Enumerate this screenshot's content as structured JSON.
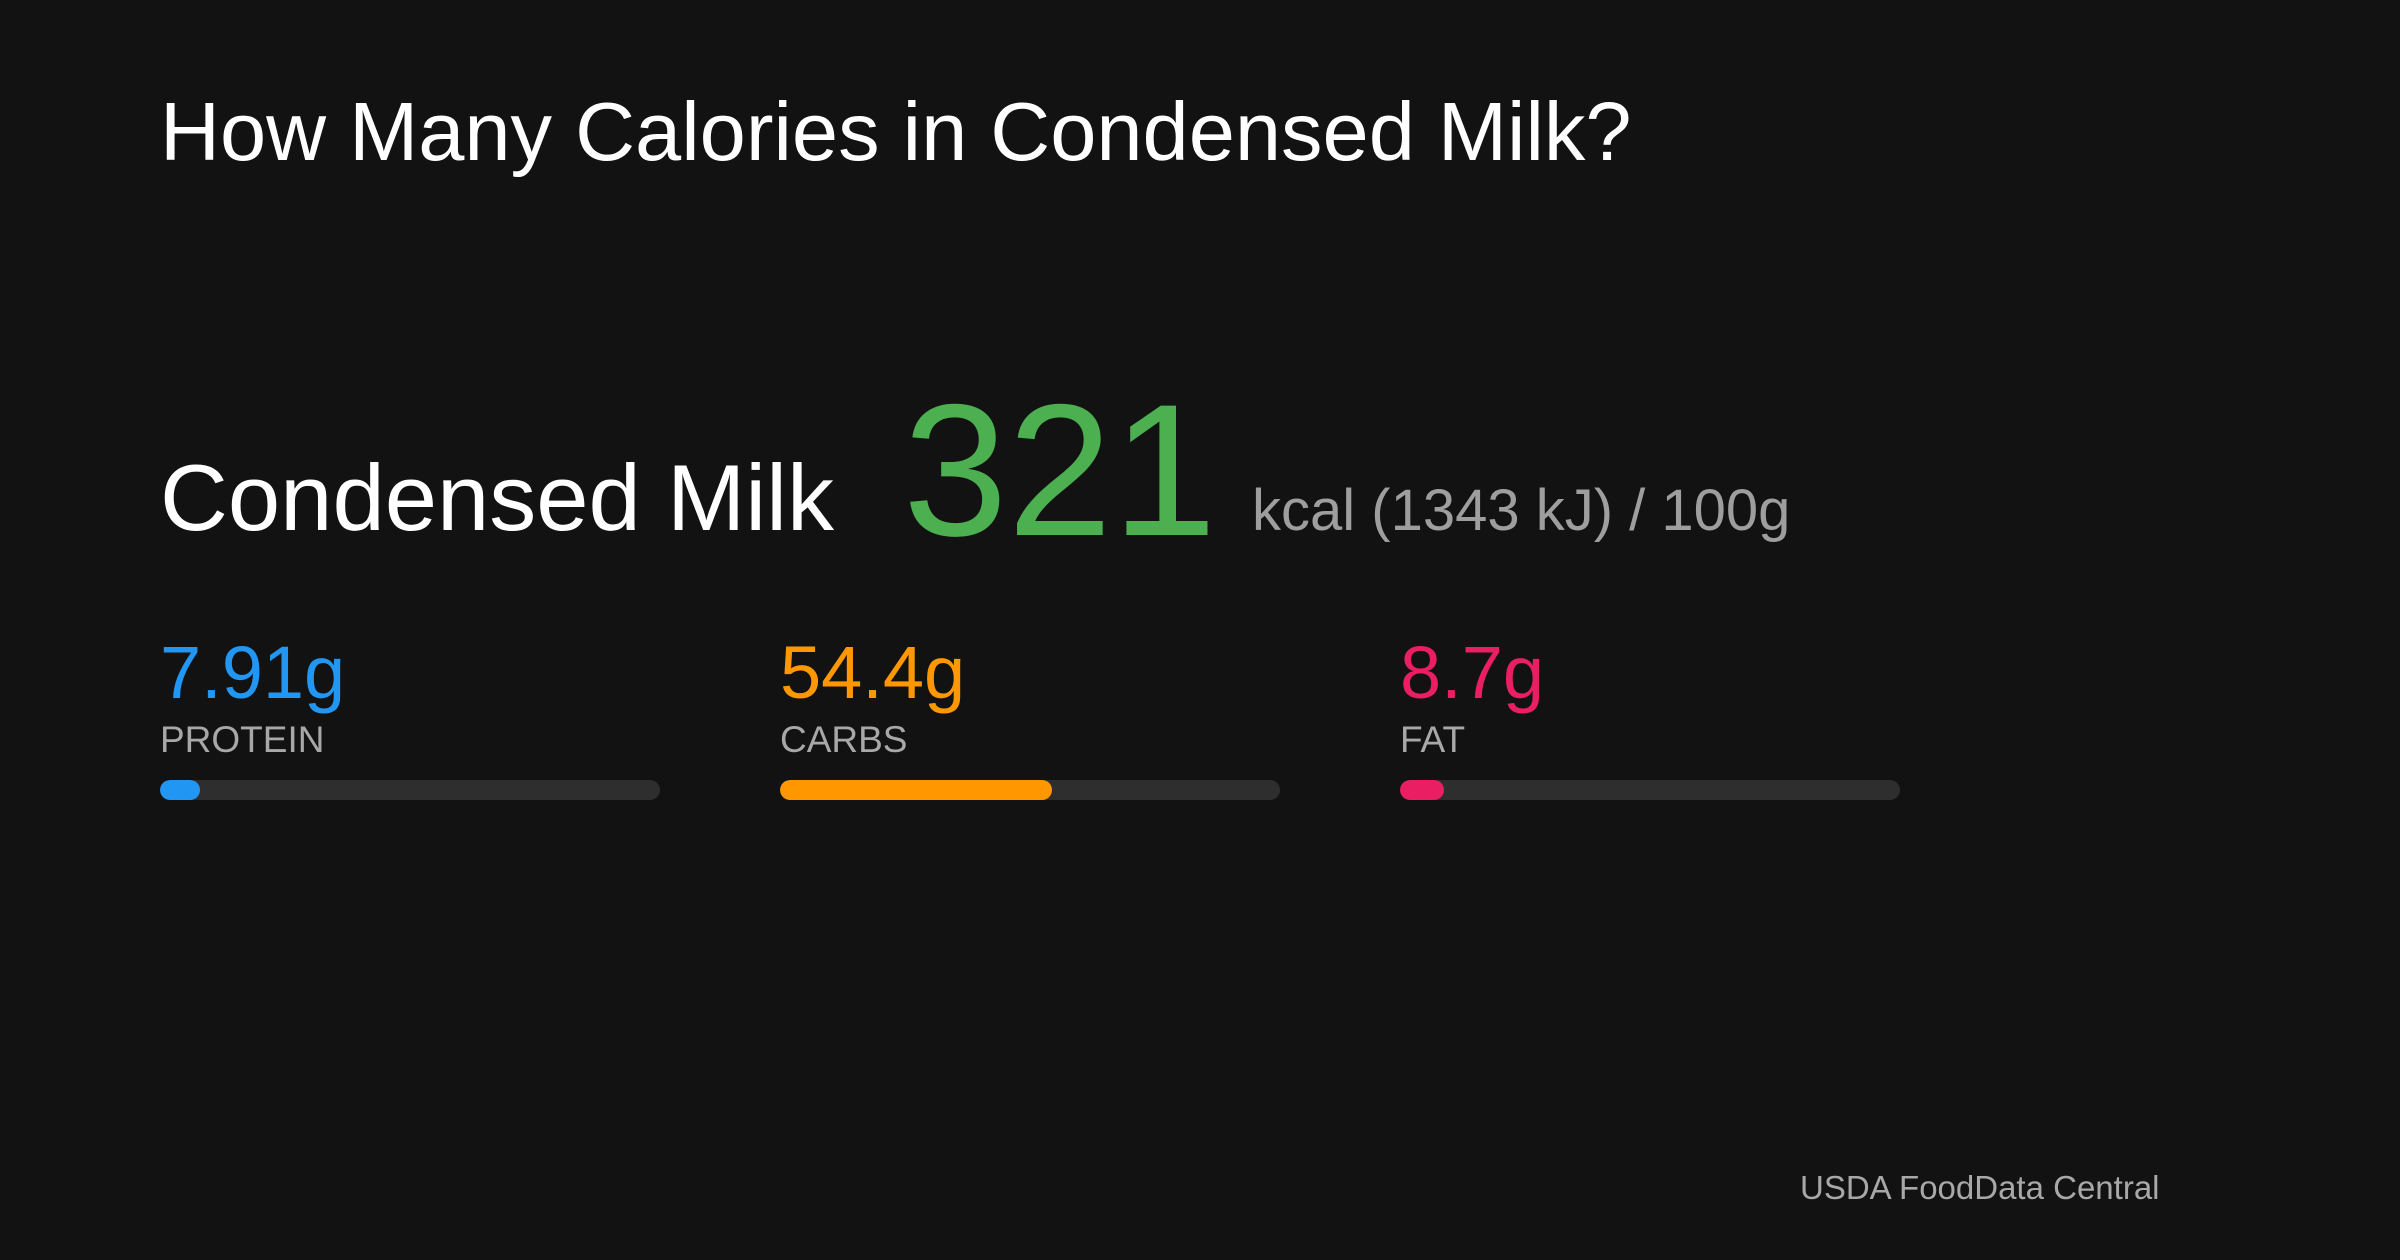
{
  "title": "How Many Calories in Condensed Milk?",
  "food": {
    "name": "Condensed Milk",
    "kcal": "321",
    "unit_text": "kcal (1343 kJ) / 100g"
  },
  "colors": {
    "background": "#121212",
    "kcal": "#4caf50",
    "protein": "#2196f3",
    "carbs": "#ff9800",
    "fat": "#e91e63",
    "track": "#2e2e2e",
    "muted_text": "#9e9e9e"
  },
  "macros": [
    {
      "key": "protein",
      "value": "7.91g",
      "label": "PROTEIN",
      "fill_fraction": 0.08,
      "color": "#2196f3"
    },
    {
      "key": "carbs",
      "value": "54.4g",
      "label": "CARBS",
      "fill_fraction": 0.544,
      "color": "#ff9800"
    },
    {
      "key": "fat",
      "value": "8.7g",
      "label": "FAT",
      "fill_fraction": 0.087,
      "color": "#e91e63"
    }
  ],
  "source": "USDA FoodData Central"
}
